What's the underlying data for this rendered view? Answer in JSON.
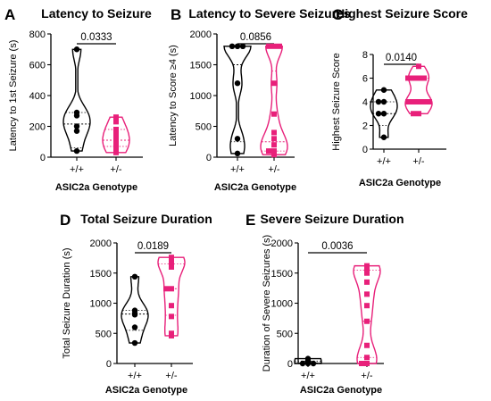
{
  "colors": {
    "wt": "#000000",
    "het": "#e8207a",
    "axis": "#000000"
  },
  "chart_data": [
    {
      "panel": "A",
      "type": "violin",
      "title": "Latency to Seizure",
      "ylabel": "Latency to 1st Seizure (s)",
      "xlabel": "ASIC2a Genotype",
      "categories": [
        "+/+",
        "+/-"
      ],
      "ylim": [
        0,
        800
      ],
      "yticks": [
        0,
        200,
        400,
        600,
        800
      ],
      "pvalue": "0.0333",
      "series": [
        {
          "values": [
            700,
            290,
            270,
            200,
            170,
            40
          ],
          "median": 215,
          "quartiles": [
            60,
            290
          ]
        },
        {
          "values": [
            260,
            230,
            180,
            160,
            140,
            120,
            100,
            80,
            60,
            40,
            30
          ],
          "median": 110,
          "quartiles": [
            70,
            180
          ]
        }
      ]
    },
    {
      "panel": "B",
      "type": "violin",
      "title": "Latency to Severe Seizures",
      "ylabel": "Latency to Score ≥4 (s)",
      "xlabel": "ASIC2a Genotype",
      "categories": [
        "+/+",
        "+/-"
      ],
      "ylim": [
        0,
        2000
      ],
      "yticks": [
        0,
        500,
        1000,
        1500,
        2000
      ],
      "pvalue": "0.0856",
      "series": [
        {
          "values": [
            1800,
            1800,
            1800,
            1200,
            300,
            60
          ],
          "median": 1500,
          "quartiles": [
            250,
            1800
          ]
        },
        {
          "values": [
            1800,
            1800,
            1800,
            1200,
            700,
            400,
            300,
            200,
            100,
            100,
            40
          ],
          "median": 250,
          "quartiles": [
            100,
            1400
          ]
        }
      ]
    },
    {
      "panel": "C",
      "type": "violin",
      "title": "Highest Seizure Score",
      "ylabel": "Highest Seizure Score",
      "xlabel": "ASIC2a Genotype",
      "categories": [
        "+/+",
        "+/-"
      ],
      "ylim": [
        0,
        8
      ],
      "yticks": [
        0,
        2,
        4,
        6,
        8
      ],
      "pvalue": "0.0140",
      "series": [
        {
          "values": [
            5,
            4,
            4,
            3,
            3,
            1
          ],
          "median": 3,
          "quartiles": [
            2,
            4
          ]
        },
        {
          "values": [
            7,
            6,
            6,
            6,
            6,
            4,
            4,
            4,
            4,
            4,
            3,
            3
          ],
          "median": 4,
          "quartiles": [
            4,
            6
          ]
        }
      ]
    },
    {
      "panel": "D",
      "type": "violin",
      "title": "Total Seizure Duration",
      "ylabel": "Total Seizure Duration (s)",
      "xlabel": "ASIC2a Genotype",
      "categories": [
        "+/+",
        "+/-"
      ],
      "ylim": [
        0,
        2000
      ],
      "yticks": [
        0,
        500,
        1000,
        1500,
        2000
      ],
      "pvalue": "0.0189",
      "series": [
        {
          "values": [
            1440,
            880,
            830,
            810,
            600,
            340
          ],
          "median": 820,
          "quartiles": [
            550,
            880
          ]
        },
        {
          "values": [
            1760,
            1740,
            1700,
            1640,
            1600,
            1240,
            1240,
            960,
            780,
            500,
            460
          ],
          "median": 1240,
          "quartiles": [
            800,
            1650
          ]
        }
      ]
    },
    {
      "panel": "E",
      "type": "violin",
      "title": "Severe Seizure Duration",
      "ylabel": "Duration of Severe Seizures (s)",
      "xlabel": "ASIC2a Genotype",
      "categories": [
        "+/+",
        "+/-"
      ],
      "ylim": [
        0,
        2000
      ],
      "yticks": [
        0,
        500,
        1000,
        1500,
        2000
      ],
      "pvalue": "0.0036",
      "series": [
        {
          "values": [
            80,
            40,
            20,
            0,
            0,
            0
          ],
          "median": 10,
          "quartiles": [
            0,
            40
          ]
        },
        {
          "values": [
            1620,
            1600,
            1580,
            1500,
            1350,
            1150,
            960,
            700,
            300,
            100,
            0,
            0
          ],
          "median": 700,
          "quartiles": [
            100,
            1550
          ]
        }
      ]
    }
  ]
}
